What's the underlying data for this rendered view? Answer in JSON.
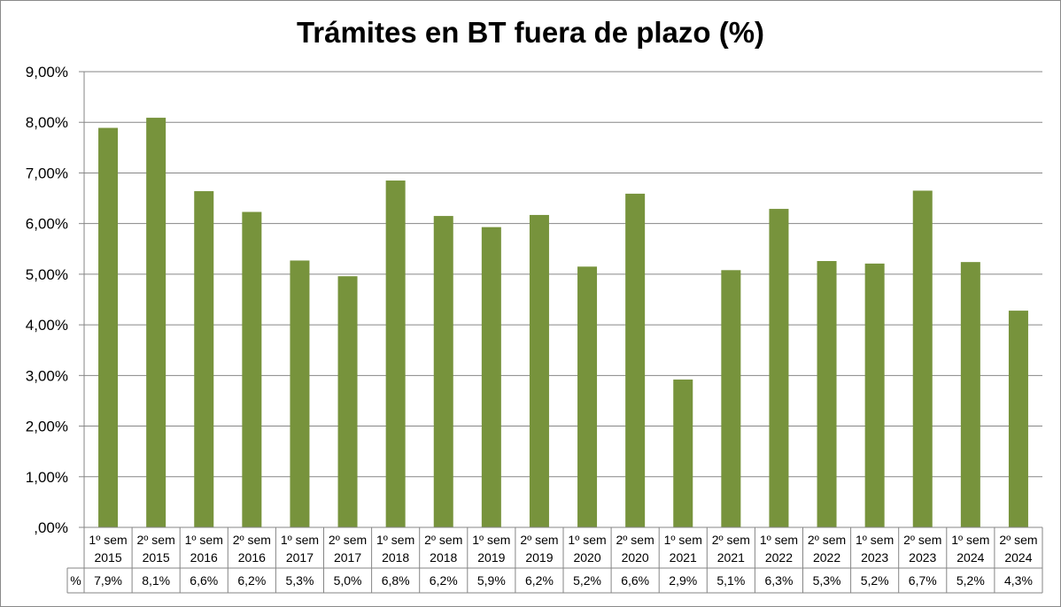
{
  "chart_data": {
    "type": "bar",
    "title": "Trámites en BT fuera de plazo (%)",
    "xlabel": "",
    "ylabel": "",
    "ylim": [
      0,
      9
    ],
    "y_ticks": [
      ",00%",
      "1,00%",
      "2,00%",
      "3,00%",
      "4,00%",
      "5,00%",
      "6,00%",
      "7,00%",
      "8,00%",
      "9,00%"
    ],
    "grid": true,
    "bar_color": "#77933c",
    "categories": [
      [
        "1º sem",
        "2015"
      ],
      [
        "2º sem",
        "2015"
      ],
      [
        "1º sem",
        "2016"
      ],
      [
        "2º sem",
        "2016"
      ],
      [
        "1º sem",
        "2017"
      ],
      [
        "2º sem",
        "2017"
      ],
      [
        "1º sem",
        "2018"
      ],
      [
        "2º sem",
        "2018"
      ],
      [
        "1º sem",
        "2019"
      ],
      [
        "2º sem",
        "2019"
      ],
      [
        "1º sem",
        "2020"
      ],
      [
        "2º sem",
        "2020"
      ],
      [
        "1º sem",
        "2021"
      ],
      [
        "2º sem",
        "2021"
      ],
      [
        "1º sem",
        "2022"
      ],
      [
        "2º sem",
        "2022"
      ],
      [
        "1º sem",
        "2023"
      ],
      [
        "2º sem",
        "2023"
      ],
      [
        "1º sem",
        "2024"
      ],
      [
        "2º sem",
        "2024"
      ]
    ],
    "values": [
      7.89,
      8.09,
      6.64,
      6.23,
      5.27,
      4.96,
      6.85,
      6.15,
      5.93,
      6.17,
      5.15,
      6.59,
      2.92,
      5.08,
      6.29,
      5.26,
      5.21,
      6.65,
      5.24,
      4.28
    ],
    "table_row_label": "%",
    "table_labels": [
      "7,9%",
      "8,1%",
      "6,6%",
      "6,2%",
      "5,3%",
      "5,0%",
      "6,8%",
      "6,2%",
      "5,9%",
      "6,2%",
      "5,2%",
      "6,6%",
      "2,9%",
      "5,1%",
      "6,3%",
      "5,3%",
      "5,2%",
      "6,7%",
      "5,2%",
      "4,3%"
    ]
  }
}
